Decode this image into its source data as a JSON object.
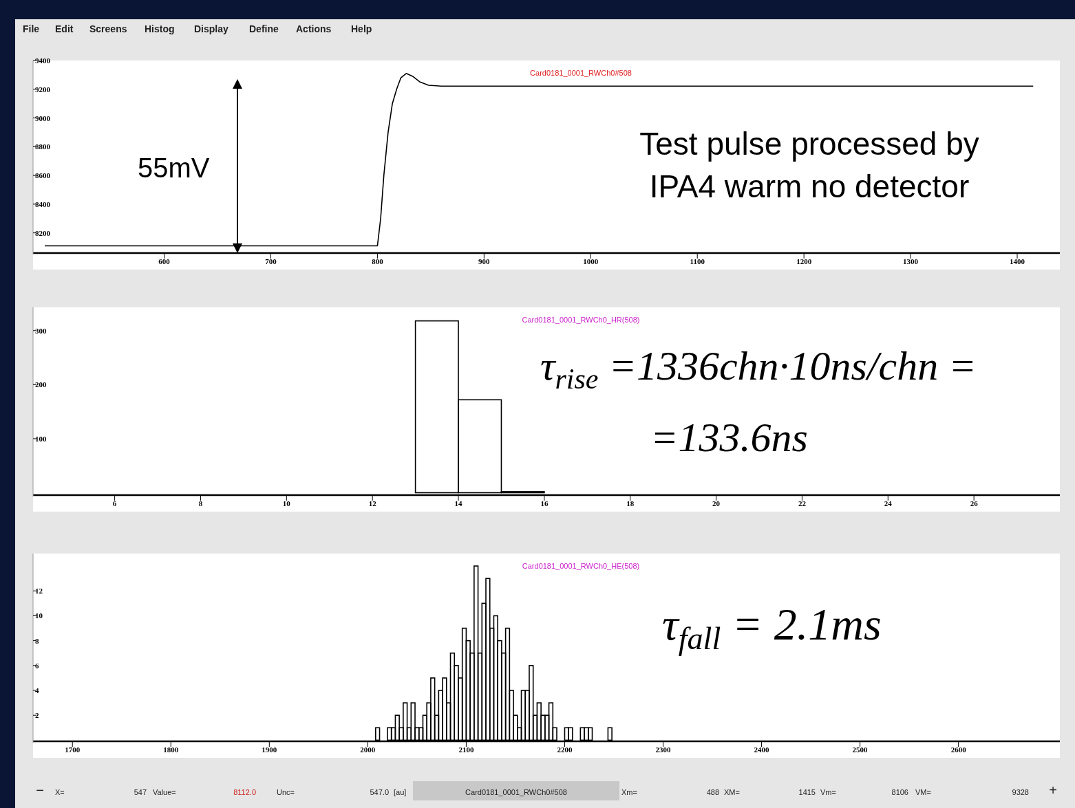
{
  "chart_data": [
    {
      "type": "other",
      "annotations": [
        "File",
        "Edit",
        "Screens",
        "Histog",
        "Display",
        "Define",
        "Actions",
        "Help"
      ]
    },
    {
      "type": "line",
      "title": "Card0181_0001_RWCh0#508",
      "x": [
        488,
        600,
        700,
        800,
        803,
        806,
        810,
        814,
        818,
        822,
        827,
        833,
        840,
        848,
        860,
        1000,
        1200,
        1415
      ],
      "series": [
        {
          "color": "#000000",
          "values": [
            8110,
            8110,
            8110,
            8110,
            8300,
            8600,
            8900,
            9100,
            9200,
            9280,
            9310,
            9290,
            9250,
            9228,
            9222,
            9222,
            9222,
            9222
          ]
        }
      ],
      "xlim": [
        477,
        1440
      ],
      "xticks": [
        600,
        700,
        800,
        900,
        1000,
        1100,
        1200,
        1300,
        1400
      ],
      "ylim": [
        8050,
        9400
      ],
      "yticks": [
        8200,
        8400,
        8600,
        8800,
        9000,
        9200,
        9400
      ],
      "annotations": [
        "55mV",
        "Test pulse processed by\nIPA4 warm no detector"
      ]
    },
    {
      "type": "histogram",
      "title": "Card0181_0001_RWCh0_HR(508)",
      "bins": [
        4,
        5,
        6,
        7,
        8,
        9,
        10,
        11,
        12,
        13,
        14,
        15,
        16,
        17,
        18,
        19,
        20,
        21,
        22,
        23,
        24,
        25,
        26,
        27
      ],
      "values": [
        0,
        0,
        0,
        0,
        0,
        0,
        0,
        0,
        0,
        318,
        172,
        2,
        0,
        0,
        0,
        0,
        0,
        0,
        0,
        0,
        0,
        0,
        0
      ],
      "color": "#000000",
      "xlim": [
        4.1,
        28
      ],
      "xticks": [
        6,
        8,
        10,
        12,
        14,
        16,
        18,
        20,
        22,
        24,
        26
      ],
      "ylim": [
        -7,
        343
      ],
      "yticks": [
        100,
        200,
        300
      ],
      "annotations": [
        "τ$_{rise}$ =1336chn·10ns/chn =",
        "=133.6ns"
      ]
    },
    {
      "type": "histogram",
      "title": "Card0181_0001_RWCh0_HE(508)",
      "bins": [
        2004,
        2008,
        2012,
        2016,
        2020,
        2024,
        2028,
        2032,
        2036,
        2040,
        2044,
        2048,
        2052,
        2056,
        2060,
        2064,
        2068,
        2072,
        2076,
        2080,
        2084,
        2088,
        2092,
        2096,
        2100,
        2104,
        2108,
        2112,
        2116,
        2120,
        2124,
        2128,
        2132,
        2136,
        2140,
        2144,
        2148,
        2152,
        2156,
        2160,
        2164,
        2168,
        2172,
        2176,
        2180,
        2184,
        2188,
        2192,
        2196,
        2200,
        2204,
        2208,
        2212,
        2216,
        2220,
        2224,
        2228,
        2232,
        2236,
        2240,
        2244,
        2248,
        2252
      ],
      "values": [
        0,
        1,
        0,
        0,
        1,
        1,
        2,
        1,
        3,
        1,
        3,
        1,
        1,
        2,
        3,
        5,
        2,
        4,
        5,
        3,
        7,
        6,
        5,
        9,
        8,
        7,
        14,
        7,
        11,
        13,
        9,
        10,
        8,
        7,
        9,
        4,
        2,
        1,
        4,
        4,
        6,
        2,
        3,
        2,
        2,
        3,
        1,
        0,
        0,
        1,
        1,
        0,
        0,
        1,
        1,
        1,
        0,
        0,
        0,
        0,
        1,
        0
      ],
      "color": "#000000",
      "xlim": [
        1660,
        2703
      ],
      "xticks": [
        1700,
        1800,
        1900,
        2000,
        2100,
        2200,
        2300,
        2400,
        2500,
        2600
      ],
      "ylim": [
        -0.2,
        15
      ],
      "yticks": [
        2,
        4,
        6,
        8,
        10,
        12
      ],
      "annotations": [
        "τ$_{fall}$ = 2.1ms"
      ]
    },
    {
      "type": "other",
      "annotations": [
        "−",
        "X=",
        "547",
        "Value=",
        "8112.0",
        "Unc=",
        "547.0",
        "[au]",
        "Card0181_0001_RWCh0#508",
        "Xm=",
        "488",
        "XM=",
        "1415",
        "Vm=",
        "8106",
        "VM=",
        "9328",
        "+"
      ]
    }
  ]
}
